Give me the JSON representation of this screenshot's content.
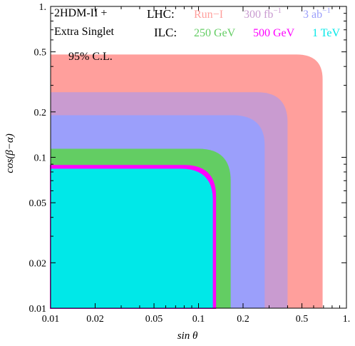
{
  "model_label": {
    "line1": "2HDM-II +",
    "line2": "Extra Singlet"
  },
  "confidence_label": "95% C.L.",
  "legend": {
    "lhc": {
      "label": "LHC:",
      "entries": [
        {
          "text": "Run−I",
          "color": "#ff9f9c"
        },
        {
          "text": "300 fb",
          "sup": "−1",
          "color": "#c99bd0"
        },
        {
          "text": "3 ab",
          "sup": "−1",
          "color": "#9b9ffb"
        }
      ]
    },
    "ilc": {
      "label": "ILC:",
      "entries": [
        {
          "text": "250 GeV",
          "color": "#63cd63"
        },
        {
          "text": "500 GeV",
          "color": "#ff00ff"
        },
        {
          "text": "1 TeV",
          "color": "#00e8e8"
        }
      ]
    }
  },
  "chart_data": {
    "type": "area",
    "xlabel": "sin θ",
    "ylabel": "cos(β−α)",
    "xscale": "log",
    "yscale": "log",
    "xlim": [
      0.01,
      1.0
    ],
    "ylim": [
      0.01,
      1.0
    ],
    "xticks": [
      {
        "value": 0.01,
        "label": "0.01"
      },
      {
        "value": 0.02,
        "label": "0.02"
      },
      {
        "value": 0.05,
        "label": "0.05"
      },
      {
        "value": 0.1,
        "label": "0.1"
      },
      {
        "value": 0.2,
        "label": "0.2"
      },
      {
        "value": 0.5,
        "label": "0.5"
      },
      {
        "value": 1.0,
        "label": "1."
      }
    ],
    "yticks": [
      {
        "value": 0.01,
        "label": "0.01"
      },
      {
        "value": 0.02,
        "label": "0.02"
      },
      {
        "value": 0.05,
        "label": "0.05"
      },
      {
        "value": 0.1,
        "label": "0.1"
      },
      {
        "value": 0.2,
        "label": "0.2"
      },
      {
        "value": 0.5,
        "label": "0.5"
      },
      {
        "value": 1.0,
        "label": "1."
      }
    ],
    "series": [
      {
        "name": "Run−I",
        "color": "#ff9f9c",
        "style": "fill",
        "sin_theta_max": 0.69,
        "cos_beta_alpha_max": 0.48,
        "corner_sin_theta": 0.46,
        "corner_cos_beta_alpha": 0.33
      },
      {
        "name": "300 fb−1",
        "color": "#c99bd0",
        "style": "fill",
        "sin_theta_max": 0.4,
        "cos_beta_alpha_max": 0.27,
        "corner_sin_theta": 0.25,
        "corner_cos_beta_alpha": 0.17
      },
      {
        "name": "3 ab−1",
        "color": "#9b9ffb",
        "style": "fill",
        "sin_theta_max": 0.28,
        "cos_beta_alpha_max": 0.19,
        "corner_sin_theta": 0.17,
        "corner_cos_beta_alpha": 0.12
      },
      {
        "name": "250 GeV",
        "color": "#63cd63",
        "style": "fill",
        "sin_theta_max": 0.165,
        "cos_beta_alpha_max": 0.114,
        "corner_sin_theta": 0.1,
        "corner_cos_beta_alpha": 0.07
      },
      {
        "name": "500 GeV",
        "color": "#ff00ff",
        "style": "line",
        "sin_theta_max": 0.13,
        "cos_beta_alpha_max": 0.088,
        "corner_sin_theta": 0.08,
        "corner_cos_beta_alpha": 0.055
      },
      {
        "name": "1 TeV",
        "color": "#00e8e8",
        "style": "fill",
        "sin_theta_max": 0.125,
        "cos_beta_alpha_max": 0.084,
        "corner_sin_theta": 0.076,
        "corner_cos_beta_alpha": 0.052
      }
    ]
  }
}
